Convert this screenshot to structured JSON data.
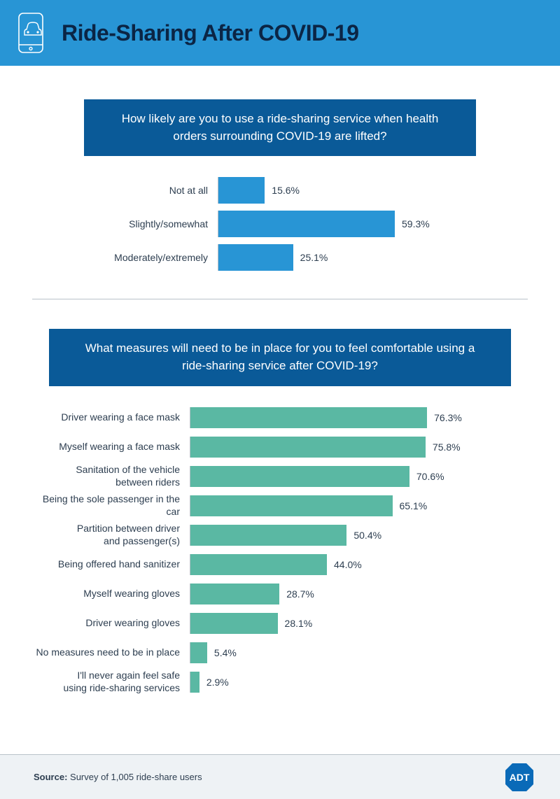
{
  "header": {
    "title": "Ride-Sharing After COVID-19",
    "title_color": "#0b2545",
    "bg_color": "#2895d5"
  },
  "chart1": {
    "type": "bar",
    "question": "How likely are you to use a ride-sharing service when health orders surrounding COVID-19 are lifted?",
    "question_bg": "#0a5a98",
    "bar_color": "#2895d5",
    "axis_color": "#b9c2c9",
    "max_value": 80,
    "rows": [
      {
        "label": "Not at all",
        "value": 15.6,
        "display": "15.6%"
      },
      {
        "label": "Slightly/somewhat",
        "value": 59.3,
        "display": "59.3%"
      },
      {
        "label": "Moderately/extremely",
        "value": 25.1,
        "display": "25.1%"
      }
    ]
  },
  "chart2": {
    "type": "bar",
    "question": "What measures will need to be in place for you to feel comfortable using a ride-sharing service after COVID-19?",
    "question_bg": "#0a5a98",
    "bar_color": "#5ab8a3",
    "axis_color": "#b9c2c9",
    "max_value": 88,
    "rows": [
      {
        "label": "Driver wearing a face mask",
        "value": 76.3,
        "display": "76.3%"
      },
      {
        "label": "Myself wearing a face mask",
        "value": 75.8,
        "display": "75.8%"
      },
      {
        "label": "Sanitation of the vehicle\nbetween riders",
        "value": 70.6,
        "display": "70.6%"
      },
      {
        "label": "Being the sole passenger in the car",
        "value": 65.1,
        "display": "65.1%"
      },
      {
        "label": "Partition between driver\nand passenger(s)",
        "value": 50.4,
        "display": "50.4%"
      },
      {
        "label": "Being offered hand sanitizer",
        "value": 44.0,
        "display": "44.0%"
      },
      {
        "label": "Myself wearing gloves",
        "value": 28.7,
        "display": "28.7%"
      },
      {
        "label": "Driver wearing gloves",
        "value": 28.1,
        "display": "28.1%"
      },
      {
        "label": "No measures need to be in place",
        "value": 5.4,
        "display": "5.4%"
      },
      {
        "label": "I'll never again feel safe\nusing ride-sharing services",
        "value": 2.9,
        "display": "2.9%"
      }
    ]
  },
  "footer": {
    "source_label": "Source:",
    "source_text": " Survey of 1,005 ride-share users",
    "logo_color": "#0a6ab8",
    "logo_text": "ADT"
  }
}
